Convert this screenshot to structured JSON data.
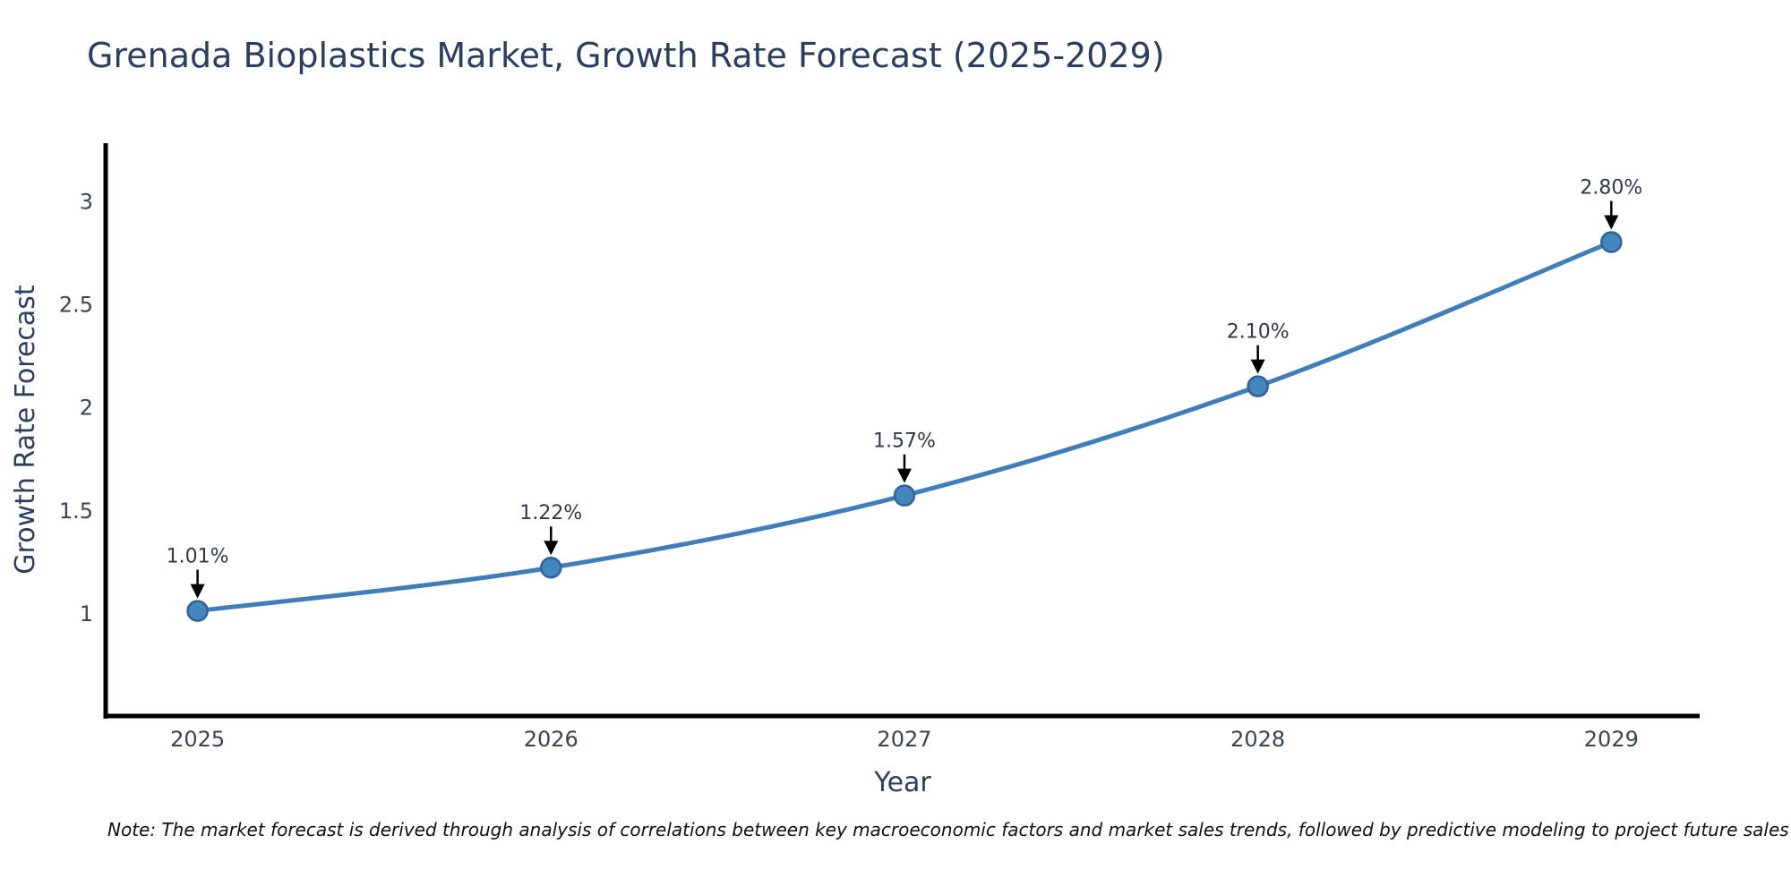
{
  "title": "Grenada Bioplastics Market, Growth Rate Forecast (2025-2029)",
  "note": "Note: The market forecast is derived through analysis of correlations between key macroeconomic factors and market sales trends, followed by predictive modeling to project future sales",
  "chart_data": {
    "type": "line",
    "title": "Grenada Bioplastics Market, Growth Rate Forecast (2025-2029)",
    "xlabel": "Year",
    "ylabel": "Growth Rate Forecast",
    "x": [
      2025,
      2026,
      2027,
      2028,
      2029
    ],
    "series": [
      {
        "name": "Growth Rate Forecast",
        "values": [
          1.01,
          1.22,
          1.57,
          2.1,
          2.8
        ],
        "point_labels": [
          "1.01%",
          "1.22%",
          "1.57%",
          "2.10%",
          "2.80%"
        ]
      }
    ],
    "xticks": [
      2025,
      2026,
      2027,
      2028,
      2029
    ],
    "yticks": [
      1,
      1.5,
      2,
      2.5,
      3
    ],
    "xlim": [
      2024.74,
      2029.25
    ],
    "ylim": [
      0.5,
      3.28
    ],
    "grid": false,
    "legend": "none",
    "line_shape": "spline",
    "annotations_arrow": true,
    "colors": {
      "line": "#3f7eb8",
      "marker_fill": "#4486be",
      "marker_edge": "#2f6398",
      "axis": "#000000",
      "title_text": "#2c3e5d",
      "tick_text": "#3a4554",
      "annotation_text": "#2e3a49",
      "note_text": "#111111",
      "background": "#ffffff"
    }
  }
}
